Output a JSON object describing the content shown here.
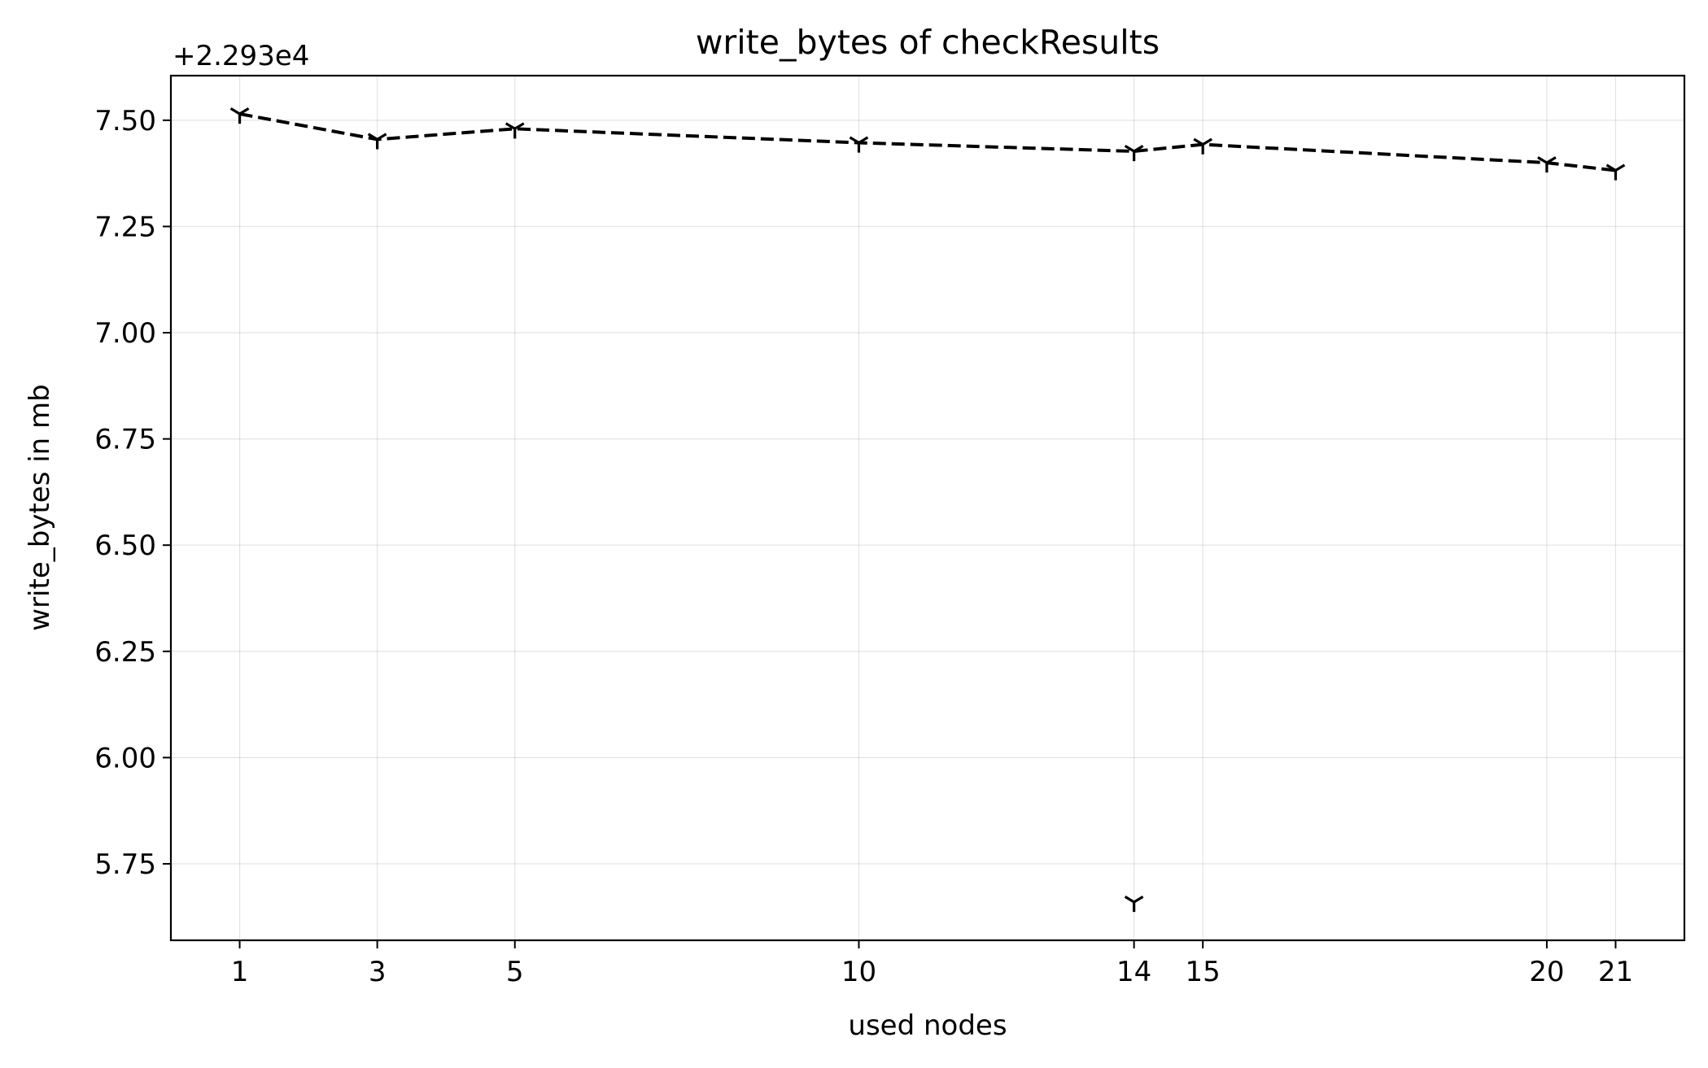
{
  "chart_data": {
    "type": "line",
    "title": "write_bytes of checkResults",
    "xlabel": "used nodes",
    "ylabel": "write_bytes in mb",
    "y_offset_label": "+2.293e4",
    "y_offset": 22930,
    "x_ticks": [
      1,
      3,
      5,
      10,
      14,
      15,
      20,
      21
    ],
    "y_ticks": [
      5.75,
      6.0,
      6.25,
      6.5,
      6.75,
      7.0,
      7.25,
      7.5
    ],
    "y_tick_labels": [
      "5.75",
      "6.00",
      "6.25",
      "6.50",
      "6.75",
      "7.00",
      "7.25",
      "7.50"
    ],
    "xlim": [
      0,
      22
    ],
    "ylim": [
      5.57,
      7.605
    ],
    "grid": true,
    "marker": "tri_down",
    "line_style": "dashed",
    "color": "#000000",
    "series": [
      {
        "x": [
          1,
          3,
          5,
          10,
          14,
          15,
          20,
          21
        ],
        "y": [
          7.515,
          7.455,
          7.48,
          7.447,
          7.427,
          7.443,
          7.4,
          7.382
        ]
      }
    ],
    "outliers": [
      {
        "x": 14,
        "y": 5.66
      }
    ]
  }
}
